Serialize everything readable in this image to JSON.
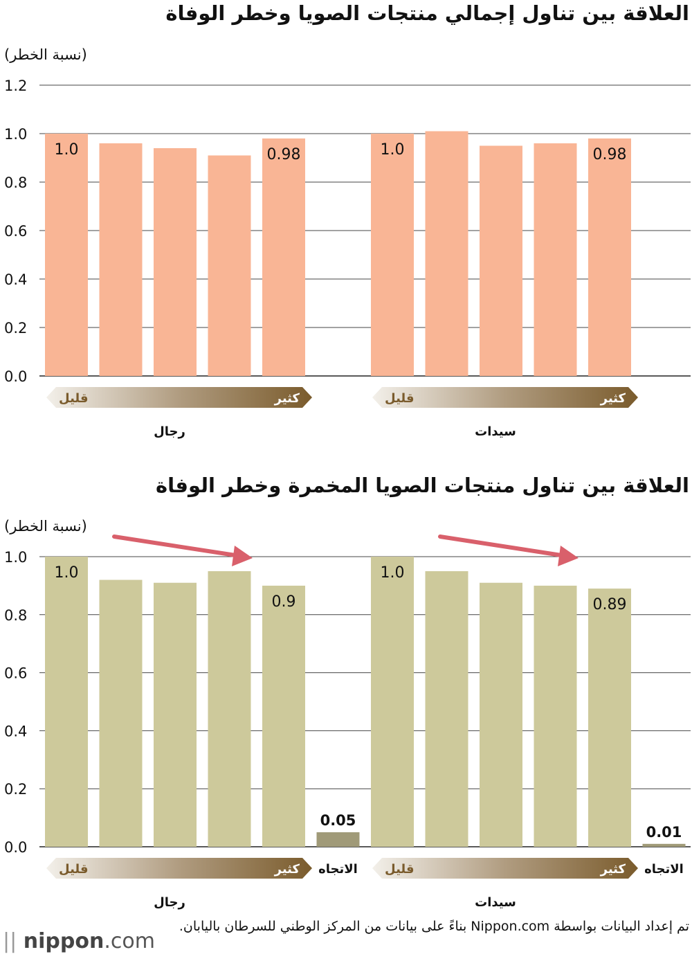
{
  "chart_data": [
    {
      "type": "bar",
      "title": "العلاقة بين تناول إجمالي منتجات الصويا وخطر الوفاة",
      "ylabel": "(نسبة الخطر)",
      "ylim": [
        0,
        1.2
      ],
      "yticks": [
        "0.0",
        "0.2",
        "0.4",
        "0.6",
        "0.8",
        "1.0",
        "1.2"
      ],
      "grid": true,
      "bar_color": "#f9b595",
      "groups": [
        {
          "name": "رجال",
          "values": [
            1.0,
            0.96,
            0.94,
            0.91,
            0.98
          ],
          "labels": [
            "1.0",
            "",
            "",
            "",
            "0.98"
          ],
          "scale_low": "قليل",
          "scale_high": "كثير"
        },
        {
          "name": "سيدات",
          "values": [
            1.0,
            1.01,
            0.95,
            0.96,
            0.98
          ],
          "labels": [
            "1.0",
            "",
            "",
            "",
            "0.98"
          ],
          "scale_low": "قليل",
          "scale_high": "كثير"
        }
      ]
    },
    {
      "type": "bar",
      "title": "العلاقة بين تناول منتجات الصويا المخمرة وخطر الوفاة",
      "ylabel": "(نسبة الخطر)",
      "ylim": [
        0,
        1.0
      ],
      "yticks": [
        "0.0",
        "0.2",
        "0.4",
        "0.6",
        "0.8",
        "1.0"
      ],
      "grid": true,
      "bar_color": "#cdc99b",
      "trend_color": "#a09a78",
      "arrow_color": "#d9606b",
      "groups": [
        {
          "name": "رجال",
          "values": [
            1.0,
            0.92,
            0.91,
            0.95,
            0.9
          ],
          "labels": [
            "1.0",
            "",
            "",
            "",
            "0.9"
          ],
          "trend_value": 0.05,
          "trend_label": "0.05",
          "trend_name": "الاتجاه",
          "scale_low": "قليل",
          "scale_high": "كثير"
        },
        {
          "name": "سيدات",
          "values": [
            1.0,
            0.95,
            0.91,
            0.9,
            0.89
          ],
          "labels": [
            "1.0",
            "",
            "",
            "",
            "0.89"
          ],
          "trend_value": 0.01,
          "trend_label": "0.01",
          "trend_name": "الاتجاه",
          "scale_low": "قليل",
          "scale_high": "كثير"
        }
      ]
    }
  ],
  "source_text": "تم إعداد البيانات بواسطة Nippon.com بناءً على بيانات من المركز الوطني للسرطان باليابان.",
  "logo": {
    "part1": "nippon",
    "part2": ".com"
  }
}
